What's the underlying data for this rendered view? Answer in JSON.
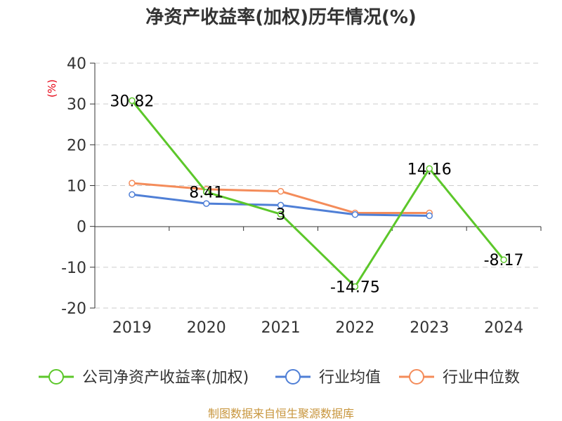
{
  "chart_data": {
    "type": "line",
    "title": "净资产收益率(加权)历年情况(%)",
    "ylabel": "(%)",
    "xlabel": "",
    "categories": [
      "2019",
      "2020",
      "2021",
      "2022",
      "2023",
      "2024"
    ],
    "ylim": [
      -20,
      40
    ],
    "yticks": [
      40,
      30,
      20,
      10,
      0,
      -10,
      -20
    ],
    "grid": true,
    "legend_position": "bottom",
    "series": [
      {
        "name": "公司净资产收益率(加权)",
        "color": "#5cc72a",
        "values": [
          30.82,
          8.41,
          3,
          -14.75,
          14.16,
          -8.17
        ],
        "labels": [
          "30.82",
          "8.41",
          "3",
          "-14.75",
          "14.16",
          "-8.17"
        ]
      },
      {
        "name": "行业均值",
        "color": "#4f7fd6",
        "values": [
          7.8,
          5.6,
          5.2,
          2.9,
          2.6,
          null
        ]
      },
      {
        "name": "行业中位数",
        "color": "#f48c5a",
        "values": [
          10.6,
          9.1,
          8.6,
          3.3,
          3.3,
          null
        ]
      }
    ],
    "source": "制图数据来自恒生聚源数据库"
  }
}
